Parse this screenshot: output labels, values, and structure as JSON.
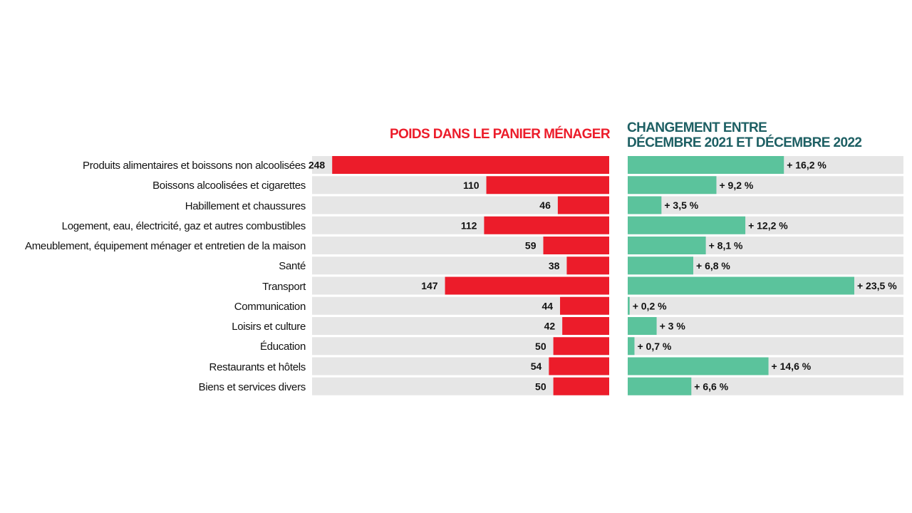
{
  "chart_data": [
    {
      "type": "bar",
      "orientation": "horizontal",
      "direction": "right-to-left",
      "title": "POIDS DANS LE PANIER MÉNAGER",
      "categories": [
        "Produits alimentaires et boissons non alcoolisées",
        "Boissons alcoolisées et cigarettes",
        "Habillement et chaussures",
        "Logement, eau, électricité, gaz et autres combustibles",
        "Ameublement, équipement ménager et entretien de la maison",
        "Santé",
        "Transport",
        "Communication",
        "Loisirs et culture",
        "Éducation",
        "Restaurants et hôtels",
        "Biens et services divers"
      ],
      "values": [
        248,
        110,
        46,
        112,
        59,
        38,
        147,
        44,
        42,
        50,
        54,
        50
      ],
      "labels": [
        "248",
        "110",
        "46",
        "112",
        "59",
        "38",
        "147",
        "44",
        "42",
        "50",
        "54",
        "50"
      ],
      "xlim": [
        0,
        266
      ],
      "color": "#ec1c2a",
      "track_color": "#e6e6e6"
    },
    {
      "type": "bar",
      "orientation": "horizontal",
      "title_lines": [
        "CHANGEMENT ENTRE",
        "DÉCEMBRE 2021 ET DÉCEMBRE 2022"
      ],
      "categories": [
        "Produits alimentaires et boissons non alcoolisées",
        "Boissons alcoolisées et cigarettes",
        "Habillement et chaussures",
        "Logement, eau, électricité, gaz et autres combustibles",
        "Ameublement, équipement ménager et entretien de la maison",
        "Santé",
        "Transport",
        "Communication",
        "Loisirs et culture",
        "Éducation",
        "Restaurants et hôtels",
        "Biens et services divers"
      ],
      "values": [
        16.2,
        9.2,
        3.5,
        12.2,
        8.1,
        6.8,
        23.5,
        0.2,
        3,
        0.7,
        14.6,
        6.6
      ],
      "labels": [
        "+ 16,2 %",
        "+ 9,2 %",
        "+ 3,5 %",
        "+ 12,2 %",
        "+ 8,1 %",
        "+ 6,8 %",
        "+ 23,5 %",
        "+ 0,2 %",
        "+ 3 %",
        "+ 0,7 %",
        "+ 14,6 %",
        "+ 6,6 %"
      ],
      "xlim": [
        0,
        28.6
      ],
      "color": "#5bc39c",
      "track_color": "#e6e6e6"
    }
  ]
}
